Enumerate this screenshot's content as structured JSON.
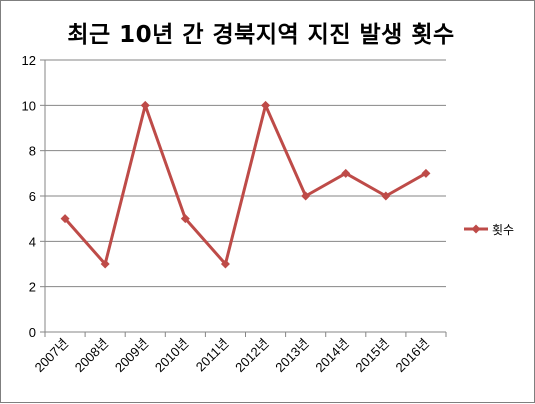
{
  "chart_data": {
    "type": "line",
    "title": "최근 10년 간 경북지역 지진 발생 횟수",
    "xlabel": "",
    "ylabel": "",
    "categories": [
      "2007년",
      "2008년",
      "2009년",
      "2010년",
      "2011년",
      "2012년",
      "2013년",
      "2014년",
      "2015년",
      "2016년"
    ],
    "series": [
      {
        "name": "횟수",
        "values": [
          5,
          3,
          10,
          5,
          3,
          10,
          6,
          7,
          6,
          7
        ]
      }
    ],
    "ylim": [
      0,
      12
    ],
    "yticks": [
      0,
      2,
      4,
      6,
      8,
      10,
      12
    ],
    "grid": true,
    "legend_position": "right",
    "colors": {
      "series": "#be4b48",
      "grid": "#868686",
      "axis": "#868686"
    }
  }
}
